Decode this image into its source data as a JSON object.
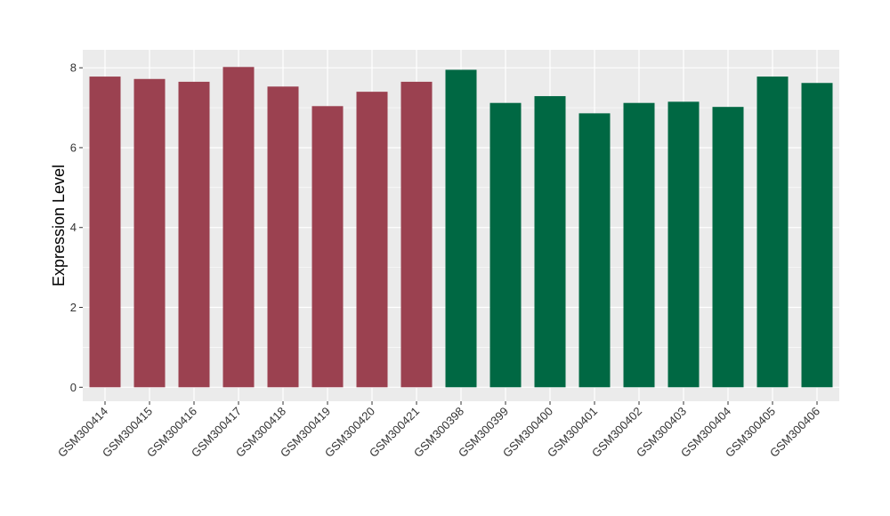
{
  "chart_data": {
    "type": "bar",
    "title": "",
    "xlabel": "",
    "ylabel": "Expression Level",
    "ylim": [
      -0.35,
      8.45
    ],
    "yticks": [
      0,
      2,
      4,
      6,
      8
    ],
    "grid": true,
    "categories": [
      "GSM300414",
      "GSM300415",
      "GSM300416",
      "GSM300417",
      "GSM300418",
      "GSM300419",
      "GSM300420",
      "GSM300421",
      "GSM300398",
      "GSM300399",
      "GSM300400",
      "GSM300401",
      "GSM300402",
      "GSM300403",
      "GSM300404",
      "GSM300405",
      "GSM300406"
    ],
    "values": [
      7.78,
      7.72,
      7.65,
      8.02,
      7.53,
      7.04,
      7.4,
      7.65,
      7.95,
      7.12,
      7.29,
      6.86,
      7.12,
      7.15,
      7.02,
      7.78,
      7.62
    ],
    "bar_colors": [
      "#9b4150",
      "#9b4150",
      "#9b4150",
      "#9b4150",
      "#9b4150",
      "#9b4150",
      "#9b4150",
      "#9b4150",
      "#006843",
      "#006843",
      "#006843",
      "#006843",
      "#006843",
      "#006843",
      "#006843",
      "#006843",
      "#006843"
    ],
    "panel_background": "#ebebeb",
    "grid_color": "#ffffff"
  }
}
